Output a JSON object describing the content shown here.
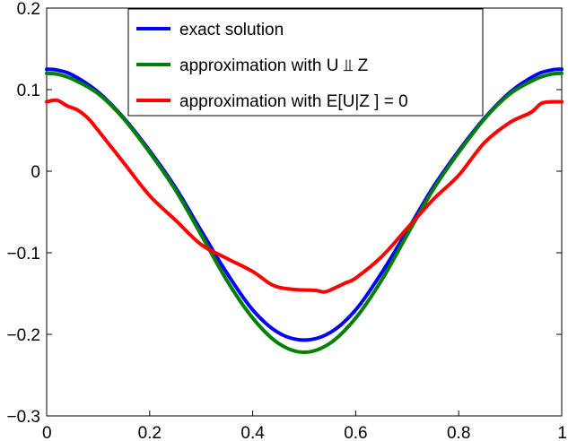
{
  "chart_data": {
    "type": "line",
    "title": "",
    "xlabel": "",
    "ylabel": "",
    "xlim": [
      0,
      1
    ],
    "ylim": [
      -0.3,
      0.2
    ],
    "grid": false,
    "legend_position": "top-right",
    "x_ticks": [
      0,
      0.2,
      0.4,
      0.6,
      0.8,
      1
    ],
    "x_tick_labels": [
      "0",
      "0.2",
      "0.4",
      "0.6",
      "0.8",
      "1"
    ],
    "y_ticks": [
      -0.3,
      -0.2,
      -0.1,
      0,
      0.1,
      0.2
    ],
    "y_tick_labels": [
      "−0.3",
      "−0.2",
      "−0.1",
      "0",
      "0.1",
      "0.2"
    ],
    "series": [
      {
        "name": "exact solution",
        "color": "#0000ff",
        "x": [
          0,
          0.02,
          0.05,
          0.1,
          0.15,
          0.2,
          0.25,
          0.3,
          0.35,
          0.4,
          0.45,
          0.5,
          0.55,
          0.6,
          0.65,
          0.7,
          0.75,
          0.8,
          0.85,
          0.9,
          0.95,
          0.98,
          1
        ],
        "y": [
          0.125,
          0.124,
          0.118,
          0.097,
          0.065,
          0.025,
          -0.02,
          -0.073,
          -0.125,
          -0.17,
          -0.198,
          -0.207,
          -0.198,
          -0.17,
          -0.125,
          -0.073,
          -0.02,
          0.025,
          0.065,
          0.097,
          0.118,
          0.124,
          0.125
        ]
      },
      {
        "name": "approximation with U ⫫ Z",
        "color": "#008000",
        "x": [
          0,
          0.02,
          0.05,
          0.1,
          0.15,
          0.2,
          0.25,
          0.3,
          0.35,
          0.4,
          0.45,
          0.5,
          0.55,
          0.6,
          0.65,
          0.7,
          0.75,
          0.8,
          0.85,
          0.9,
          0.95,
          0.98,
          1
        ],
        "y": [
          0.12,
          0.119,
          0.113,
          0.095,
          0.064,
          0.023,
          -0.023,
          -0.078,
          -0.134,
          -0.18,
          -0.211,
          -0.222,
          -0.211,
          -0.18,
          -0.134,
          -0.078,
          -0.023,
          0.023,
          0.064,
          0.095,
          0.113,
          0.119,
          0.12
        ]
      },
      {
        "name": "approximation with E[U|Z ] = 0",
        "color": "#ff0000",
        "x": [
          0,
          0.02,
          0.04,
          0.06,
          0.08,
          0.1,
          0.15,
          0.2,
          0.25,
          0.3,
          0.35,
          0.4,
          0.44,
          0.48,
          0.52,
          0.54,
          0.56,
          0.58,
          0.6,
          0.65,
          0.7,
          0.75,
          0.8,
          0.85,
          0.9,
          0.94,
          0.96,
          0.98,
          1
        ],
        "y": [
          0.085,
          0.087,
          0.08,
          0.075,
          0.065,
          0.05,
          0.01,
          -0.03,
          -0.06,
          -0.09,
          -0.107,
          -0.123,
          -0.14,
          -0.145,
          -0.146,
          -0.148,
          -0.143,
          -0.137,
          -0.131,
          -0.105,
          -0.07,
          -0.035,
          -0.005,
          0.035,
          0.06,
          0.072,
          0.083,
          0.085,
          0.085
        ]
      }
    ]
  }
}
